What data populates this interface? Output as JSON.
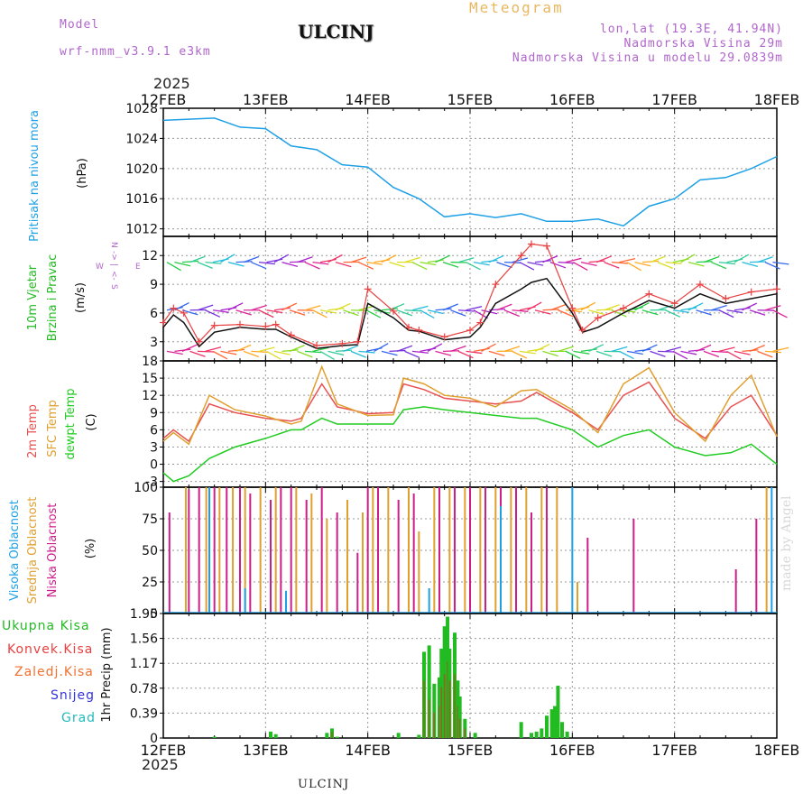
{
  "header": {
    "model_label": "Model",
    "model_name": "wrf-nmm_v3.9.1 e3km",
    "station": "ULCINJ",
    "meteogram": "Meteogram",
    "lonlat": "lon,lat (19.3E, 41.94N)",
    "elevation": "Nadmorska Visina 29m",
    "model_elevation": "Nadmorska Visina u modelu 29.0839m",
    "year_top": "2025",
    "year_bottom": "2025",
    "footer_station": "ULCINJ",
    "credit": "made by Angel"
  },
  "colors": {
    "pressure": "#1ea0e6",
    "wind_label": "#22bb22",
    "temp2m": "#e85050",
    "sfc": "#e0a030",
    "dewpt": "#22cc22",
    "high_cloud": "#1ea0e6",
    "mid_cloud": "#e0a030",
    "low_cloud": "#cc1f8a",
    "precip_total": "#22bb22",
    "precip_conv": "#e84040",
    "precip_frozen": "#f07030",
    "snow": "#3333dd",
    "graupel": "#22bbbb"
  },
  "chart_data": [
    {
      "type": "line",
      "name": "pressure",
      "ylabel": [
        "Pritisak na nivou mora",
        "(hPa)"
      ],
      "x_ticks": [
        "12FEB",
        "13FEB",
        "14FEB",
        "15FEB",
        "16FEB",
        "17FEB",
        "18FEB"
      ],
      "yticks": [
        "1012",
        "1016",
        "1020",
        "1024",
        "1028"
      ],
      "ylim": [
        1011,
        1028
      ],
      "grid": true,
      "x": [
        0,
        0.5,
        0.75,
        1,
        1.25,
        1.5,
        1.75,
        2,
        2.25,
        2.5,
        2.75,
        3,
        3.25,
        3.5,
        3.75,
        4,
        4.25,
        4.5,
        4.75,
        5,
        5.25,
        5.5,
        5.75,
        6
      ],
      "values": [
        1026.4,
        1026.7,
        1025.5,
        1025.3,
        1023,
        1022.5,
        1020.5,
        1020.2,
        1017.5,
        1016,
        1013.6,
        1014,
        1013.5,
        1014,
        1013,
        1013,
        1013.3,
        1012.4,
        1015,
        1016,
        1018.5,
        1018.8,
        1020,
        1021.6
      ]
    },
    {
      "type": "line",
      "name": "wind",
      "ylabel": [
        "10m Vjetar",
        "Brzina i Pravac",
        "(m/s)"
      ],
      "compass": [
        "N",
        "->",
        "|",
        "<-",
        "S",
        "W",
        "E"
      ],
      "yticks": [
        "3",
        "6",
        "9",
        "12"
      ],
      "ylim": [
        1,
        14
      ],
      "grid": true,
      "x": [
        0,
        0.1,
        0.2,
        0.35,
        0.5,
        0.75,
        1,
        1.1,
        1.25,
        1.5,
        1.75,
        1.9,
        2,
        2.25,
        2.4,
        2.5,
        2.75,
        3,
        3.1,
        3.25,
        3.5,
        3.6,
        3.75,
        4,
        4.1,
        4.25,
        4.5,
        4.75,
        5,
        5.25,
        5.5,
        5.75,
        6
      ],
      "series": [
        {
          "name": "mean speed",
          "color": "#111111",
          "values": [
            4.5,
            5.8,
            5,
            2.5,
            4,
            4.5,
            4.3,
            4.3,
            3.5,
            2.3,
            2.6,
            2.7,
            7,
            5.5,
            4.2,
            4.1,
            3.2,
            3.5,
            4.5,
            7,
            8.5,
            9.2,
            9.6,
            6,
            4,
            4.5,
            6,
            7.3,
            6.5,
            8,
            7,
            7.5,
            8
          ]
        },
        {
          "name": "gust",
          "color": "#e84040",
          "values": [
            5,
            6.5,
            6,
            3,
            4.7,
            4.8,
            4.6,
            4.8,
            3.7,
            2.6,
            2.8,
            3,
            8.5,
            6.2,
            4.5,
            4.2,
            3.5,
            4.2,
            5,
            9,
            12,
            13.2,
            13,
            6.5,
            4.2,
            5.5,
            6.5,
            8,
            7,
            9,
            7.5,
            8.2,
            8.5
          ]
        }
      ]
    },
    {
      "type": "line",
      "name": "temperature",
      "ylabel": [
        "2m Temp",
        "SFC Temp",
        "dewpt Temp",
        "(C)"
      ],
      "yticks": [
        "-3",
        "0",
        "3",
        "6",
        "9",
        "12",
        "15",
        "18"
      ],
      "ylim": [
        -4,
        18
      ],
      "grid": true,
      "x": [
        0,
        0.1,
        0.25,
        0.45,
        0.7,
        1,
        1.25,
        1.35,
        1.55,
        1.7,
        2,
        2.25,
        2.35,
        2.55,
        2.75,
        3,
        3.25,
        3.5,
        3.65,
        4,
        4.25,
        4.5,
        4.75,
        5,
        5.3,
        5.55,
        5.75,
        6
      ],
      "series": [
        {
          "name": "2m Temp",
          "color": "#e85050",
          "values": [
            4.5,
            6,
            4,
            10.5,
            9,
            8,
            7.5,
            8,
            14,
            10,
            8.8,
            9,
            14,
            13,
            11.5,
            11,
            10.5,
            11,
            12.5,
            9,
            6,
            12,
            14.3,
            8,
            4.5,
            10,
            12,
            5
          ]
        },
        {
          "name": "SFC Temp",
          "color": "#e0a030",
          "values": [
            4,
            5.5,
            3.5,
            12,
            9.5,
            8.4,
            7,
            7.5,
            17,
            10.5,
            8.5,
            8.6,
            15,
            14,
            12,
            11.5,
            10,
            12.8,
            13,
            9.5,
            5.5,
            14,
            16.8,
            9,
            4,
            12,
            15.5,
            4.8
          ]
        },
        {
          "name": "dewpt Temp",
          "color": "#22cc22",
          "values": [
            -1.5,
            -3,
            -2,
            1,
            3,
            4.5,
            6,
            6,
            8,
            7,
            7,
            7,
            9.5,
            10,
            9.5,
            9,
            8.5,
            8,
            8,
            6,
            3,
            5,
            6,
            3,
            1.5,
            2,
            3.5,
            0
          ]
        }
      ]
    },
    {
      "type": "bar",
      "name": "clouds",
      "ylabel": [
        "Visoka Oblacnost",
        "Srednja Oblacnost",
        "Niska Oblacnost",
        "(%)"
      ],
      "yticks": [
        "0",
        "25",
        "50",
        "75",
        "100"
      ],
      "ylim": [
        0,
        100
      ],
      "grid": true,
      "series": [
        {
          "name": "Niska Oblacnost",
          "color": "#cc1f8a",
          "bars": [
            [
              0.06,
              80
            ],
            [
              0.25,
              98
            ],
            [
              0.35,
              100
            ],
            [
              0.5,
              100
            ],
            [
              0.62,
              100
            ],
            [
              0.75,
              100
            ],
            [
              0.85,
              95
            ],
            [
              1.05,
              90
            ],
            [
              1.15,
              100
            ],
            [
              1.25,
              100
            ],
            [
              1.4,
              90
            ],
            [
              1.55,
              100
            ],
            [
              1.7,
              80
            ],
            [
              1.9,
              48
            ],
            [
              2.0,
              100
            ],
            [
              2.1,
              100
            ],
            [
              2.3,
              90
            ],
            [
              2.45,
              95
            ],
            [
              2.7,
              100
            ],
            [
              2.85,
              100
            ],
            [
              3.0,
              100
            ],
            [
              3.15,
              100
            ],
            [
              3.3,
              100
            ],
            [
              3.45,
              100
            ],
            [
              3.6,
              80
            ],
            [
              3.75,
              100
            ],
            [
              4.15,
              60
            ],
            [
              4.6,
              75
            ],
            [
              5.6,
              35
            ],
            [
              5.8,
              75
            ]
          ]
        },
        {
          "name": "Srednja Oblacnost",
          "color": "#e0a030",
          "bars": [
            [
              0.22,
              100
            ],
            [
              0.42,
              100
            ],
            [
              0.55,
              100
            ],
            [
              0.68,
              100
            ],
            [
              0.8,
              100
            ],
            [
              0.95,
              100
            ],
            [
              1.1,
              100
            ],
            [
              1.3,
              100
            ],
            [
              1.45,
              95
            ],
            [
              1.6,
              75
            ],
            [
              1.8,
              90
            ],
            [
              1.95,
              80
            ],
            [
              2.05,
              100
            ],
            [
              2.2,
              100
            ],
            [
              2.4,
              100
            ],
            [
              2.5,
              65
            ],
            [
              2.65,
              100
            ],
            [
              2.8,
              100
            ],
            [
              2.95,
              100
            ],
            [
              3.1,
              100
            ],
            [
              3.25,
              100
            ],
            [
              3.4,
              100
            ],
            [
              3.55,
              100
            ],
            [
              3.7,
              100
            ],
            [
              3.85,
              100
            ],
            [
              4.05,
              25
            ],
            [
              5.9,
              100
            ]
          ]
        },
        {
          "name": "Visoka Oblacnost",
          "color": "#1ea0e6",
          "bars": [
            [
              0.45,
              100
            ],
            [
              0.8,
              20
            ],
            [
              1.2,
              18
            ],
            [
              2.6,
              20
            ],
            [
              3.3,
              85
            ],
            [
              4.0,
              100
            ],
            [
              5.95,
              100
            ]
          ]
        }
      ]
    },
    {
      "type": "bar",
      "name": "precipitation",
      "ylabel": [
        "1hr Precip (mm)"
      ],
      "legend": [
        "Ukupna Kisa",
        "Konvek.Kisa",
        "Zaledj.Kisa",
        "Snijeg",
        "Grad"
      ],
      "x_ticks": [
        "12FEB",
        "13FEB",
        "14FEB",
        "15FEB",
        "16FEB",
        "17FEB",
        "18FEB"
      ],
      "yticks": [
        "0",
        "0.39",
        "0.78",
        "1.17",
        "1.56",
        "1.95"
      ],
      "ylim": [
        0,
        1.95
      ],
      "grid": true,
      "x": [
        0.5,
        1.05,
        1.1,
        1.6,
        1.65,
        1.7,
        2.3,
        2.5,
        2.55,
        2.6,
        2.65,
        2.7,
        2.72,
        2.75,
        2.78,
        2.8,
        2.85,
        2.88,
        2.9,
        2.95,
        3.05,
        3.5,
        3.6,
        3.65,
        3.7,
        3.75,
        3.8,
        3.83,
        3.86,
        3.9,
        3.95
      ],
      "values": [
        0.02,
        0.1,
        0.06,
        0.08,
        0.15,
        0.02,
        0.08,
        0.05,
        1.35,
        1.45,
        0.85,
        0.95,
        1.4,
        1.75,
        1.9,
        1.4,
        1.65,
        0.9,
        0.65,
        0.3,
        0.08,
        0.25,
        0.08,
        0.1,
        0.15,
        0.35,
        0.45,
        0.5,
        0.82,
        0.25,
        0.1
      ],
      "convective": [
        0,
        0,
        0,
        0,
        0.1,
        0,
        0,
        0,
        0.9,
        0.6,
        0.4,
        0.5,
        0.8,
        1.0,
        1.2,
        0.9,
        1.0,
        0.5,
        0.3,
        0.15,
        0,
        0,
        0,
        0,
        0,
        0,
        0,
        0,
        0,
        0,
        0
      ]
    }
  ]
}
